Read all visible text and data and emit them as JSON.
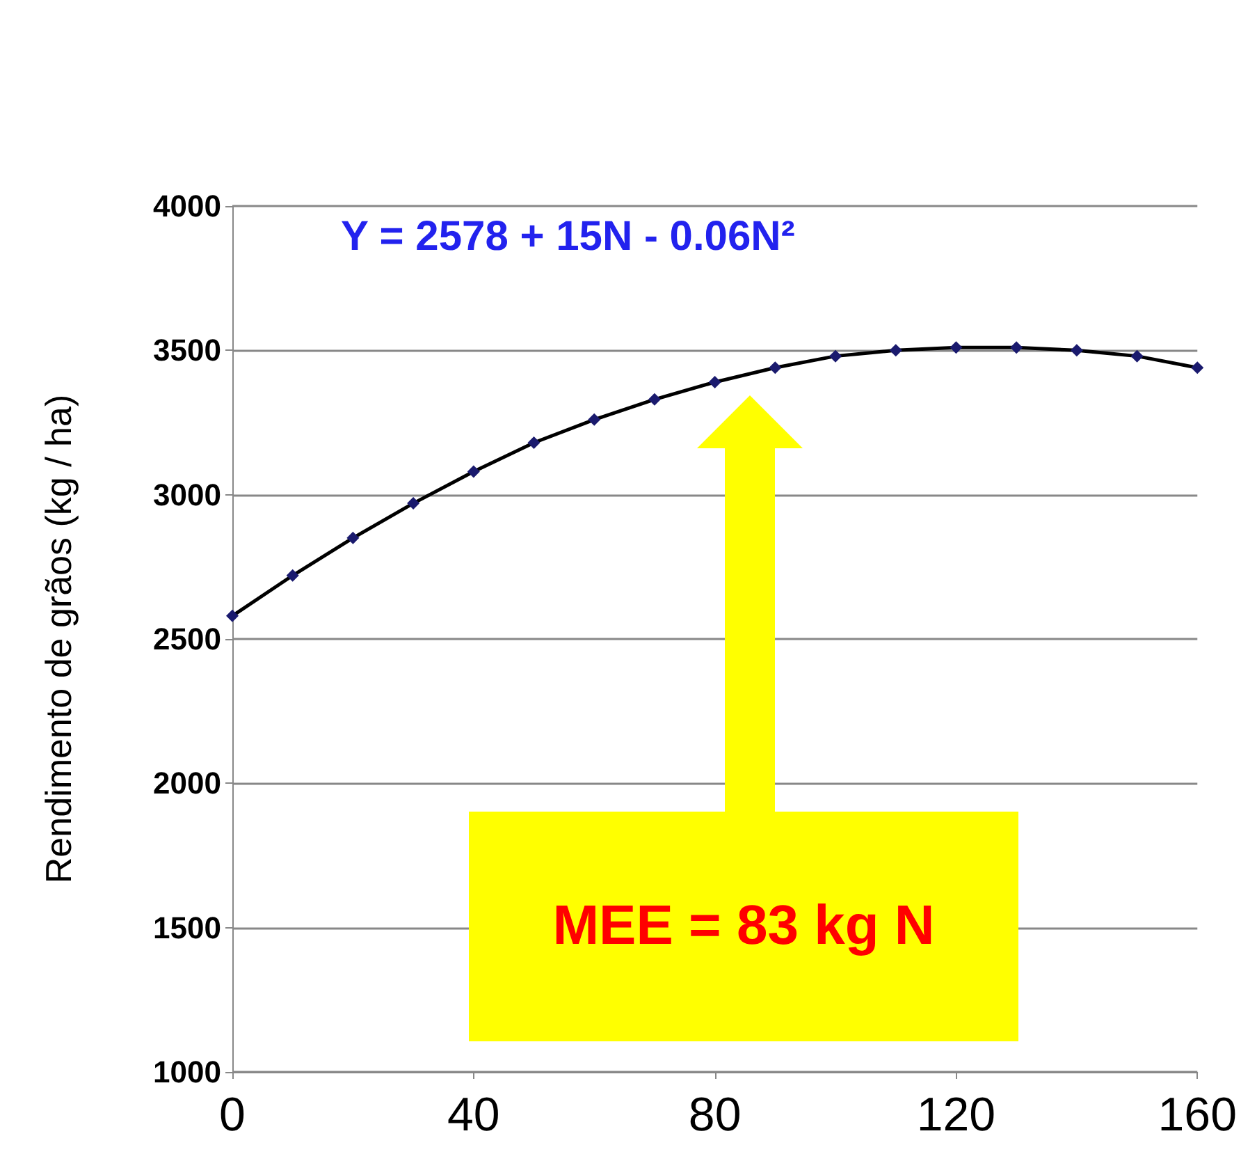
{
  "chart_data": {
    "type": "line",
    "ylabel": "Rendimento de grãos (kg / ha)",
    "x": [
      0,
      10,
      20,
      30,
      40,
      50,
      60,
      70,
      80,
      90,
      100,
      110,
      120,
      130,
      140,
      150,
      160
    ],
    "series": [
      {
        "color": "#000000",
        "values": [
          2580,
          2720,
          2850,
          2970,
          3080,
          3180,
          3260,
          3330,
          3390,
          3440,
          3480,
          3500,
          3510,
          3510,
          3500,
          3480,
          3440
        ]
      }
    ],
    "xlim": [
      0,
      160
    ],
    "xticks": [
      0,
      40,
      80,
      120,
      160
    ],
    "ylim": [
      1000,
      4000
    ],
    "yticks": [
      1000,
      1500,
      2000,
      2500,
      3000,
      3500,
      4000
    ],
    "grid": "y",
    "marker": "diamond",
    "line_style": "solid",
    "annotations": [
      "Y = 2578 + 15N - 0.06N²",
      "MEE = 83 kg N"
    ]
  }
}
